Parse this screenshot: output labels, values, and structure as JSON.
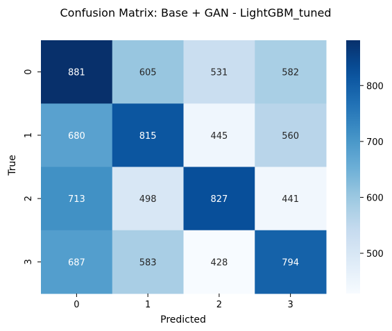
{
  "chart_data": {
    "type": "heatmap",
    "title": "Confusion Matrix: Base + GAN - LightGBM_tuned",
    "xlabel": "Predicted",
    "ylabel": "True",
    "x_categories": [
      "0",
      "1",
      "2",
      "3"
    ],
    "y_categories": [
      "0",
      "1",
      "2",
      "3"
    ],
    "values": [
      [
        881,
        605,
        531,
        582
      ],
      [
        680,
        815,
        445,
        560
      ],
      [
        713,
        498,
        827,
        441
      ],
      [
        687,
        583,
        428,
        794
      ]
    ],
    "colormap": "Blues",
    "color_range": [
      428,
      881
    ],
    "colorbar_ticks": [
      "500",
      "600",
      "700",
      "800"
    ],
    "colorbar_tick_values": [
      500,
      600,
      700,
      800
    ],
    "annotation_color_light": "#ffffff",
    "annotation_color_dark": "#262626"
  }
}
